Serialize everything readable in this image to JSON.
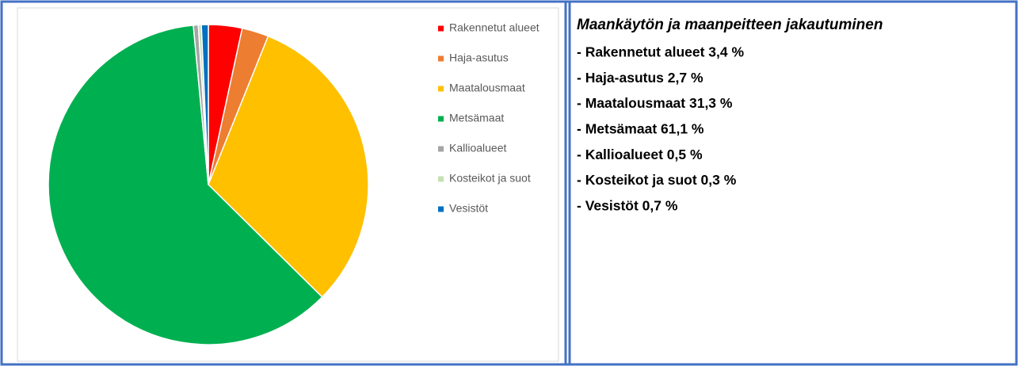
{
  "chart_data": {
    "type": "pie",
    "categories": [
      "Rakennetut alueet",
      "Haja-asutus",
      "Maatalousmaat",
      "Metsämaat",
      "Kallioalueet",
      "Kosteikot ja suot",
      "Vesistöt"
    ],
    "values": [
      3.4,
      2.7,
      31.3,
      61.1,
      0.5,
      0.3,
      0.7
    ],
    "colors": [
      "#ff0000",
      "#ed7d31",
      "#ffc000",
      "#00b050",
      "#a5a5a5",
      "#c5e0b4",
      "#0070c0"
    ],
    "legend": "right"
  },
  "text_panel": {
    "title": "Maankäytön ja maanpeitteen jakautuminen",
    "items": [
      "- Rakennetut alueet 3,4 %",
      "- Haja-asutus 2,7 %",
      "- Maatalousmaat 31,3 %",
      "- Metsämaat 61,1 %",
      "- Kallioalueet 0,5 %",
      "- Kosteikot ja suot 0,3 %",
      "- Vesistöt 0,7 %"
    ]
  }
}
